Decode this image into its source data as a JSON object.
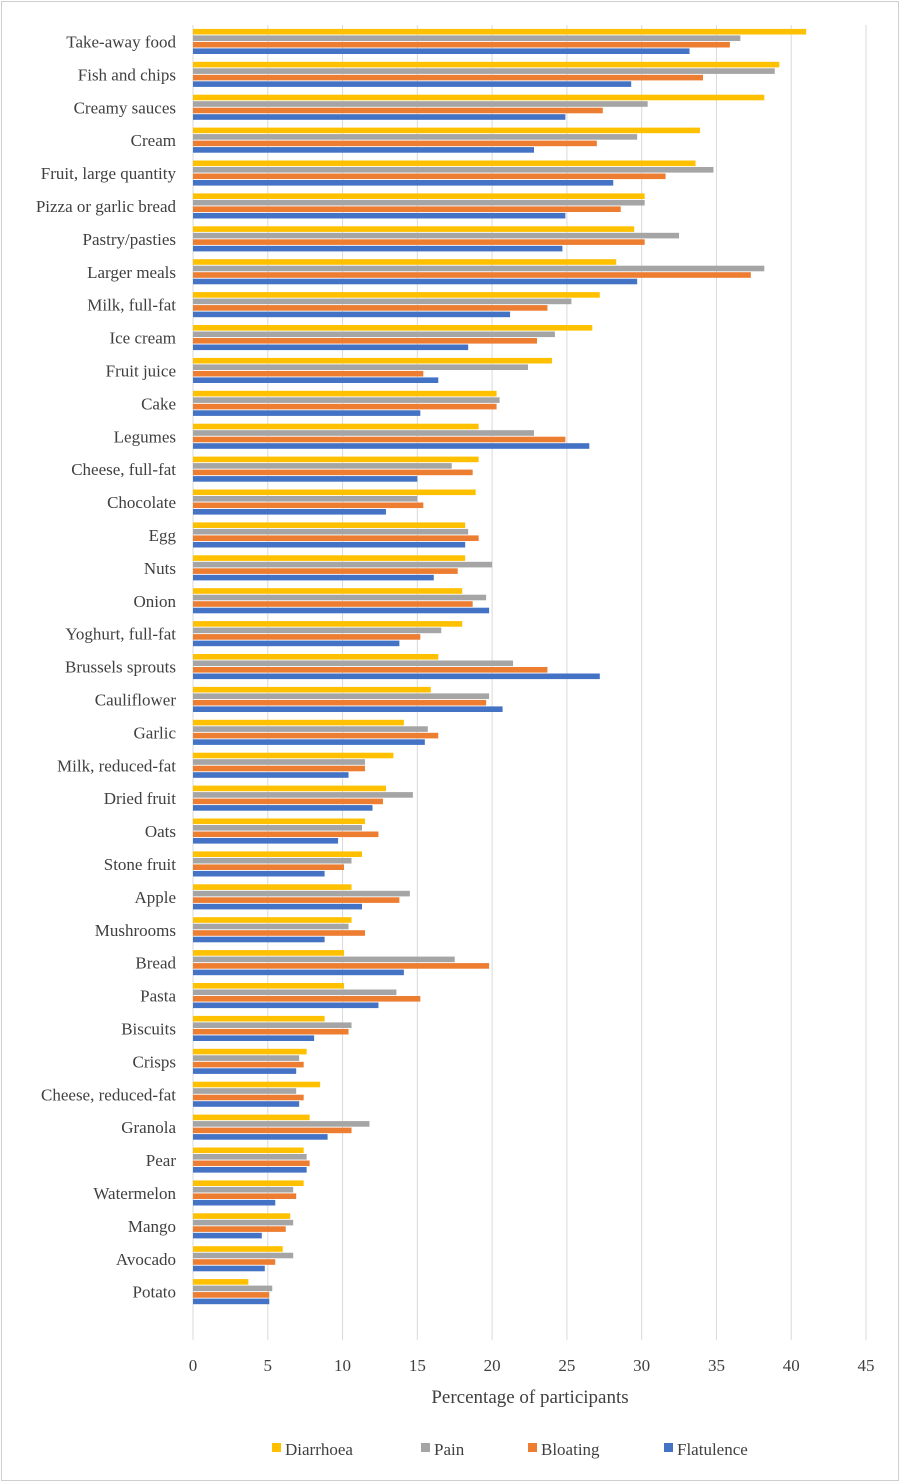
{
  "chart_data": {
    "type": "bar",
    "orientation": "horizontal",
    "title": "",
    "xlabel": "Percentage of participants",
    "ylabel": "",
    "xlim": [
      0,
      45
    ],
    "xticks": [
      0,
      5,
      10,
      15,
      20,
      25,
      30,
      35,
      40,
      45
    ],
    "grid": "vertical",
    "legend_position": "bottom",
    "categories": [
      "Take-away food",
      "Fish and chips",
      "Creamy sauces",
      "Cream",
      "Fruit, large quantity",
      "Pizza or garlic bread",
      "Pastry/pasties",
      "Larger meals",
      "Milk, full-fat",
      "Ice cream",
      "Fruit juice",
      "Cake",
      "Legumes",
      "Cheese, full-fat",
      "Chocolate",
      "Egg",
      "Nuts",
      "Onion",
      "Yoghurt, full-fat",
      "Brussels sprouts",
      "Cauliflower",
      "Garlic",
      "Milk, reduced-fat",
      "Dried fruit",
      "Oats",
      "Stone fruit",
      "Apple",
      "Mushrooms",
      "Bread",
      "Pasta",
      "Biscuits",
      "Crisps",
      "Cheese, reduced-fat",
      "Granola",
      "Pear",
      "Watermelon",
      "Mango",
      "Avocado",
      "Potato"
    ],
    "series": [
      {
        "name": "Diarrhoea",
        "color": "#FFC000",
        "values": [
          41.0,
          39.2,
          38.2,
          33.9,
          33.6,
          30.2,
          29.5,
          28.3,
          27.2,
          26.7,
          24.0,
          20.3,
          19.1,
          19.1,
          18.9,
          18.2,
          18.2,
          18.0,
          18.0,
          16.4,
          15.9,
          14.1,
          13.4,
          12.9,
          11.5,
          11.3,
          10.6,
          10.6,
          10.1,
          10.1,
          8.8,
          7.6,
          8.5,
          7.8,
          7.4,
          7.4,
          6.5,
          6.0,
          3.7
        ]
      },
      {
        "name": "Pain",
        "color": "#A5A5A5",
        "values": [
          36.6,
          38.9,
          30.4,
          29.7,
          34.8,
          30.2,
          32.5,
          38.2,
          25.3,
          24.2,
          22.4,
          20.5,
          22.8,
          17.3,
          15.0,
          18.4,
          20.0,
          19.6,
          16.6,
          21.4,
          19.8,
          15.7,
          11.5,
          14.7,
          11.3,
          10.6,
          14.5,
          10.4,
          17.5,
          13.6,
          10.6,
          7.1,
          6.9,
          11.8,
          7.6,
          6.7,
          6.7,
          6.7,
          5.3
        ]
      },
      {
        "name": "Bloating",
        "color": "#ED7D31",
        "values": [
          35.9,
          34.1,
          27.4,
          27.0,
          31.6,
          28.6,
          30.2,
          37.3,
          23.7,
          23.0,
          15.4,
          20.3,
          24.9,
          18.7,
          15.4,
          19.1,
          17.7,
          18.7,
          15.2,
          23.7,
          19.6,
          16.4,
          11.5,
          12.7,
          12.4,
          10.1,
          13.8,
          11.5,
          19.8,
          15.2,
          10.4,
          7.4,
          7.4,
          10.6,
          7.8,
          6.9,
          6.2,
          5.5,
          5.1
        ]
      },
      {
        "name": "Flatulence",
        "color": "#4472C4",
        "values": [
          33.2,
          29.3,
          24.9,
          22.8,
          28.1,
          24.9,
          24.7,
          29.7,
          21.2,
          18.4,
          16.4,
          15.2,
          26.5,
          15.0,
          12.9,
          18.2,
          16.1,
          19.8,
          13.8,
          27.2,
          20.7,
          15.5,
          10.4,
          12.0,
          9.7,
          8.8,
          11.3,
          8.8,
          14.1,
          12.4,
          8.1,
          6.9,
          7.1,
          9.0,
          7.6,
          5.5,
          4.6,
          4.8,
          5.1
        ]
      }
    ]
  }
}
